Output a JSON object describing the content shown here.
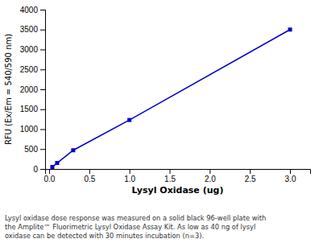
{
  "chart_data": {
    "type": "line",
    "x": [
      0.04,
      0.1,
      0.3,
      1.0,
      3.0
    ],
    "values": [
      50,
      150,
      470,
      1230,
      3500
    ],
    "color": "#0000CC",
    "marker": "square",
    "x_label": "Lysyl Oxidase (ug)",
    "y_label": "RFU (Ex/Em = 540/590 nm)",
    "xlim": [
      -0.05,
      3.25
    ],
    "ylim": [
      0,
      4000
    ],
    "xticks": [
      {
        "value": 0.0,
        "label": "0.0"
      },
      0.5,
      {
        "value": 1.0,
        "label": "1.0"
      },
      1.5,
      {
        "value": 2.0,
        "label": "2.0"
      },
      2.5,
      {
        "value": 3.0,
        "label": "3.0"
      }
    ],
    "yticks": [
      0,
      500,
      1000,
      1500,
      2000,
      2500,
      3000,
      3500,
      4000
    ],
    "caption": "Lysyl oxidase dose response was measured on a solid black 96-well plate with\nthe Amplite™ Fluorimetric Lysyl Oxidase Assay Kit. As low as 40 ng of lysyl\noxidase can be detected with 30 minutes incubation (n=3)."
  }
}
